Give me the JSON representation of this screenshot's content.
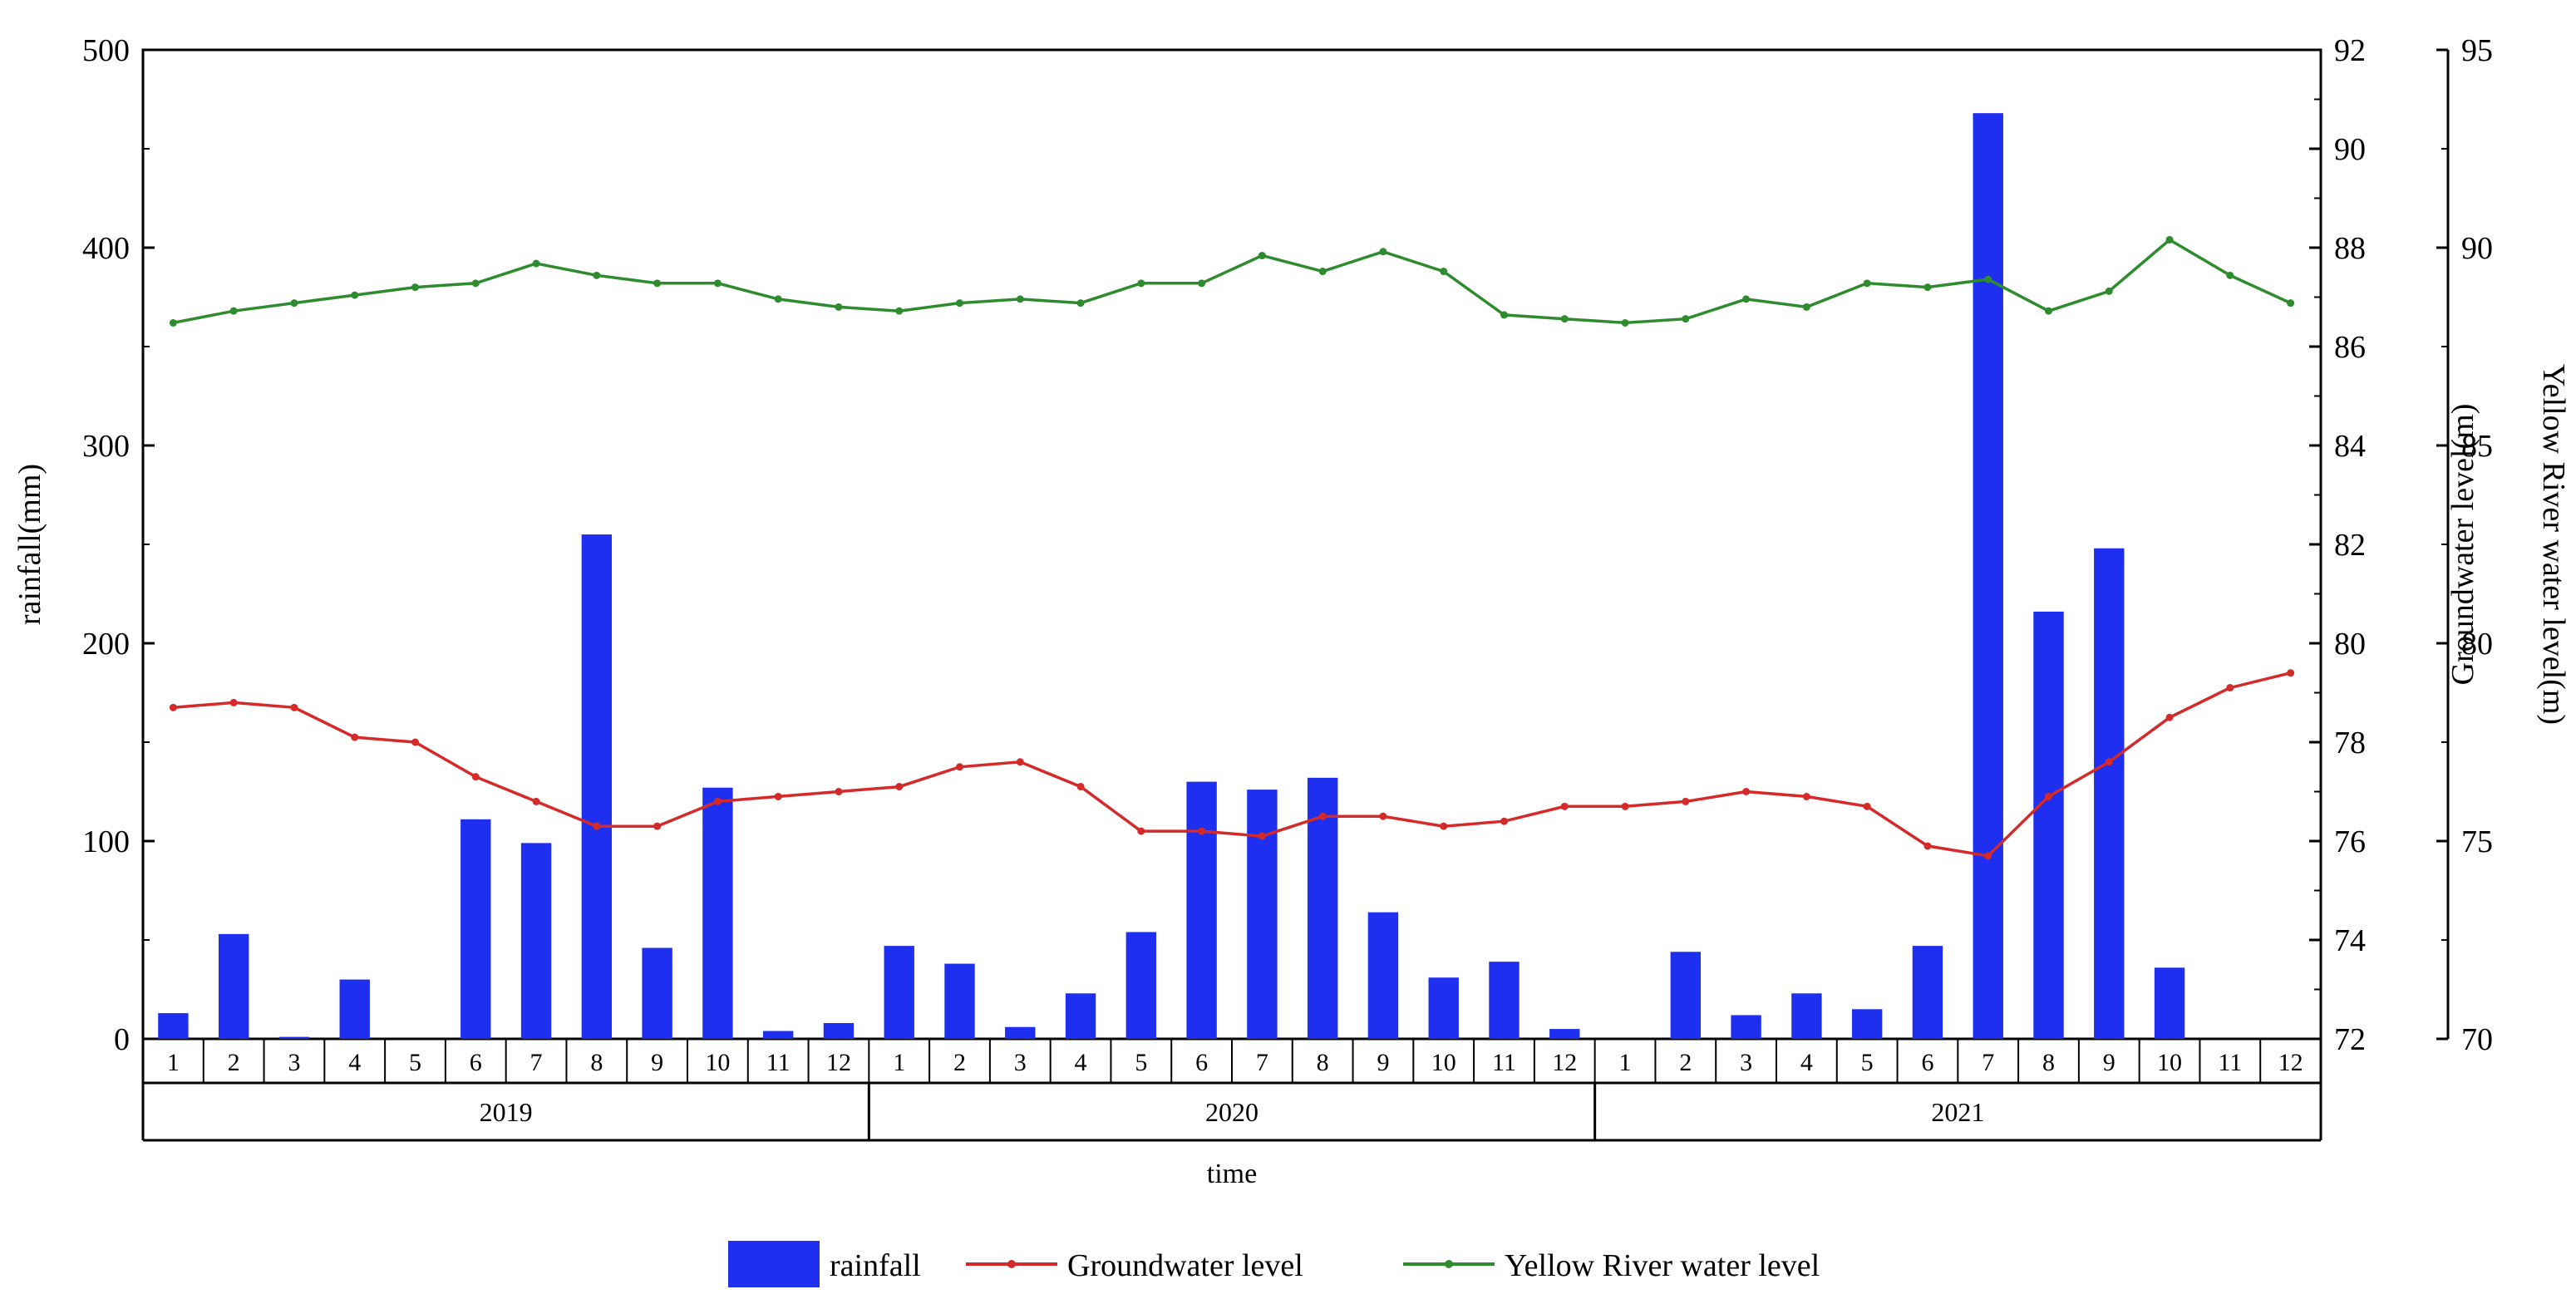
{
  "chart_data": {
    "type": "bar",
    "xlabel": "time",
    "y_left_label": "rainfall(mm)",
    "y_right1_label": "Groundwater level(m)",
    "y_right2_label": "Yellow River water level(m)",
    "y_left_range": [
      0,
      500
    ],
    "y_left_ticks": [
      "0",
      "100",
      "200",
      "300",
      "400",
      "500"
    ],
    "y_right1_range": [
      72,
      92
    ],
    "y_right1_ticks": [
      "72",
      "74",
      "76",
      "78",
      "80",
      "82",
      "84",
      "86",
      "88",
      "90",
      "92"
    ],
    "y_right2_range": [
      70,
      95
    ],
    "y_right2_ticks": [
      "70",
      "75",
      "80",
      "85",
      "90",
      "95"
    ],
    "years": [
      "2019",
      "2020",
      "2021"
    ],
    "months": [
      "1",
      "2",
      "3",
      "4",
      "5",
      "6",
      "7",
      "8",
      "9",
      "10",
      "11",
      "12"
    ],
    "legend_position": "bottom-center",
    "series": [
      {
        "name": "rainfall",
        "type": "bar",
        "axis": "left",
        "color": "#1f2ff0",
        "values": [
          13,
          53,
          1,
          30,
          0,
          111,
          99,
          255,
          46,
          127,
          4,
          8,
          47,
          38,
          6,
          23,
          54,
          130,
          126,
          132,
          64,
          31,
          39,
          5,
          0,
          44,
          12,
          23,
          15,
          47,
          468,
          216,
          248,
          36,
          0,
          0
        ]
      },
      {
        "name": "Groundwater level",
        "type": "line",
        "axis": "right1",
        "color": "#d42a2a",
        "values": [
          78.7,
          78.8,
          78.7,
          78.1,
          78.0,
          77.3,
          76.8,
          76.3,
          76.3,
          76.8,
          76.9,
          77.0,
          77.1,
          77.5,
          77.6,
          77.1,
          76.2,
          76.2,
          76.1,
          76.5,
          76.5,
          76.3,
          76.4,
          76.7,
          76.7,
          76.8,
          77.0,
          76.9,
          76.7,
          75.9,
          75.7,
          76.9,
          77.6,
          78.5,
          79.1,
          79.4
        ]
      },
      {
        "name": "Yellow River water level",
        "type": "line",
        "axis": "right2",
        "color": "#2e8b2e",
        "values": [
          88.1,
          88.4,
          88.6,
          88.8,
          89.0,
          89.1,
          89.6,
          89.3,
          89.1,
          89.1,
          88.7,
          88.5,
          88.4,
          88.6,
          88.7,
          88.6,
          89.1,
          89.1,
          89.8,
          89.4,
          89.9,
          89.4,
          88.3,
          88.2,
          88.1,
          88.2,
          88.7,
          88.5,
          89.1,
          89.0,
          89.2,
          88.4,
          88.9,
          90.2,
          89.3,
          88.6
        ]
      }
    ]
  }
}
